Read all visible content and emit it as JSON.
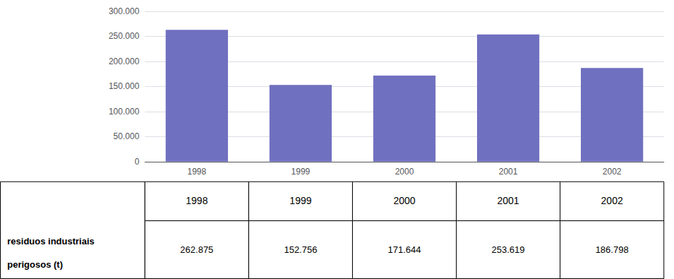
{
  "chart_data": {
    "type": "bar",
    "categories": [
      "1998",
      "1999",
      "2000",
      "2001",
      "2002"
    ],
    "values": [
      262875,
      152756,
      171644,
      253619,
      186798
    ],
    "value_labels": [
      "262.875",
      "152.756",
      "171.644",
      "253.619",
      "186.798"
    ],
    "color": "#7070C0",
    "ylim": [
      0,
      300000
    ],
    "yticks": [
      0,
      {
        "value": 50000,
        "label": "50.000"
      },
      {
        "value": 100000,
        "label": "100.000"
      },
      {
        "value": 150000,
        "label": "150.000"
      },
      {
        "value": 200000,
        "label": "200.000"
      },
      {
        "value": 250000,
        "label": "250.000"
      },
      {
        "value": 300000,
        "label": "300.000"
      }
    ],
    "grid": true,
    "annotations": [
      "residuos industriais",
      "perigosos (t)"
    ]
  }
}
